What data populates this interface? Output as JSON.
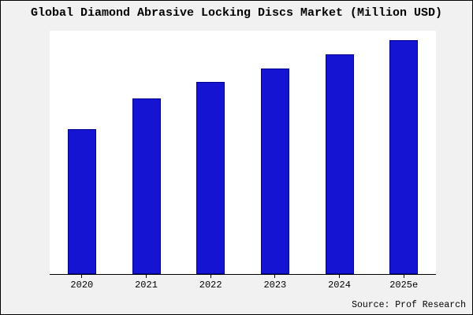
{
  "title": "Global Diamond Abrasive Locking Discs Market (Million USD)",
  "source": "Source: Prof Research",
  "colors": {
    "bar": "#1414d2",
    "bar_border": "#000090",
    "plot_bg": "#ffffff",
    "page_bg": "#f1f1f1",
    "axis": "#000000"
  },
  "chart_data": {
    "type": "bar",
    "categories": [
      "2020",
      "2021",
      "2022",
      "2023",
      "2024",
      "2025e"
    ],
    "values": [
      62,
      75,
      82,
      88,
      94,
      100
    ],
    "title": "Global Diamond Abrasive Locking Discs Market (Million USD)",
    "xlabel": "",
    "ylabel": "",
    "ylim": [
      0,
      104
    ],
    "grid": false,
    "legend": false,
    "note": "No y-axis tick labels shown; values are relative estimates from bar heights"
  }
}
